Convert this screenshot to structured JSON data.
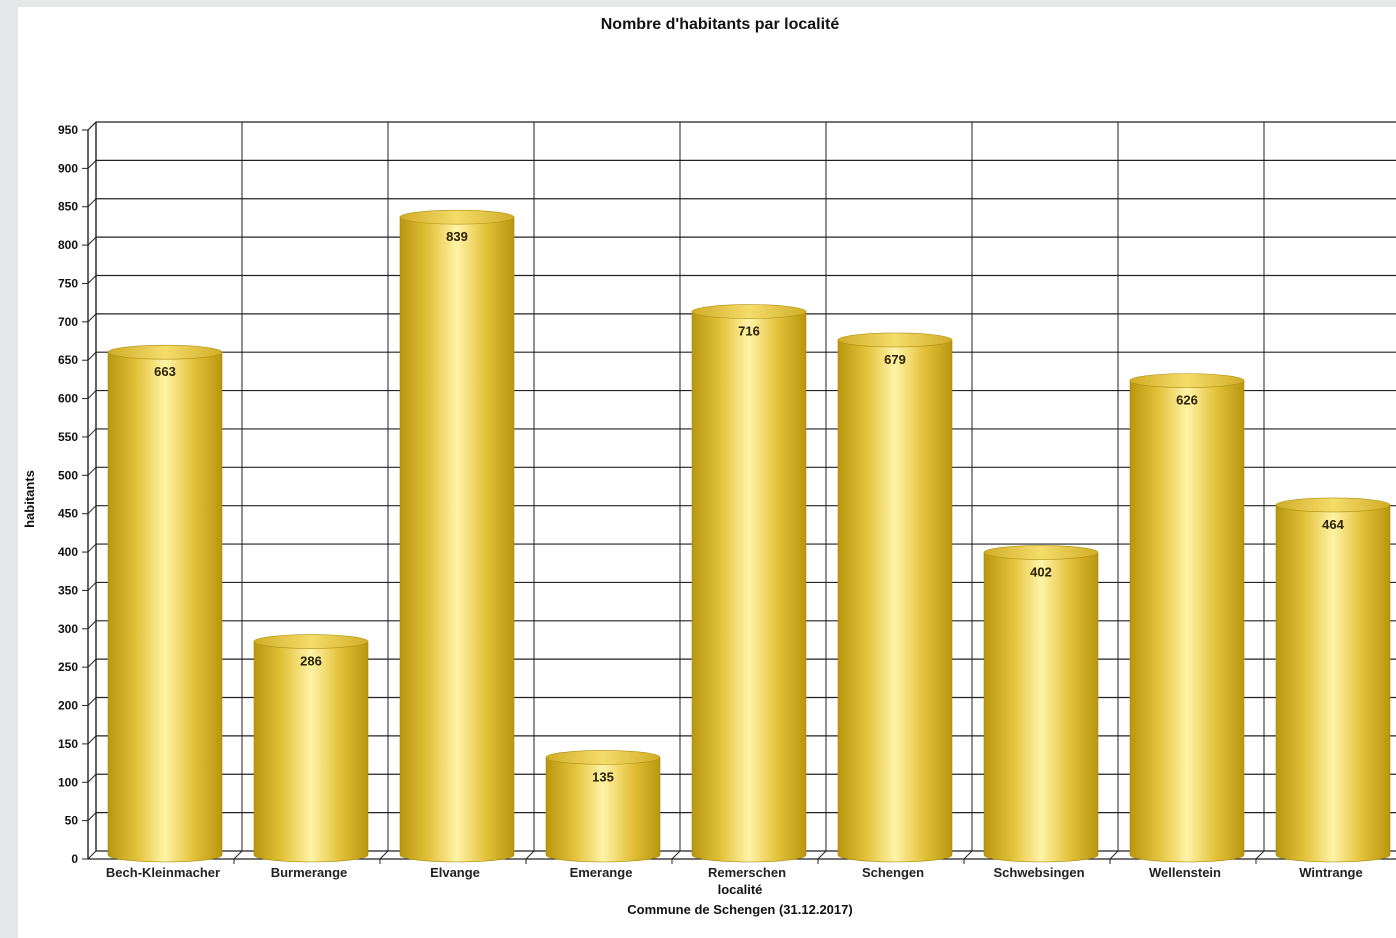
{
  "chart_data": {
    "type": "bar",
    "title": "Nombre d'habitants par localité",
    "xlabel": "localité",
    "subtitle": "Commune de Schengen (31.12.2017)",
    "ylabel": "habitants",
    "categories": [
      "Bech-Kleinmacher",
      "Burmerange",
      "Elvange",
      "Emerange",
      "Remerschen",
      "Schengen",
      "Schwebsingen",
      "Wellenstein",
      "Wintrange"
    ],
    "values": [
      663,
      286,
      839,
      135,
      716,
      679,
      402,
      626,
      464
    ],
    "ylim": [
      0,
      950
    ],
    "yticks": [
      0,
      50,
      100,
      150,
      200,
      250,
      300,
      350,
      400,
      450,
      500,
      550,
      600,
      650,
      700,
      750,
      800,
      850,
      900,
      950
    ],
    "grid": true,
    "bar_style": "3d-cylinder",
    "colors": {
      "bar": "#e6c53a",
      "bar_highlight": "#fff4a0",
      "bar_shadow": "#b89512",
      "grid": "#222222"
    }
  }
}
